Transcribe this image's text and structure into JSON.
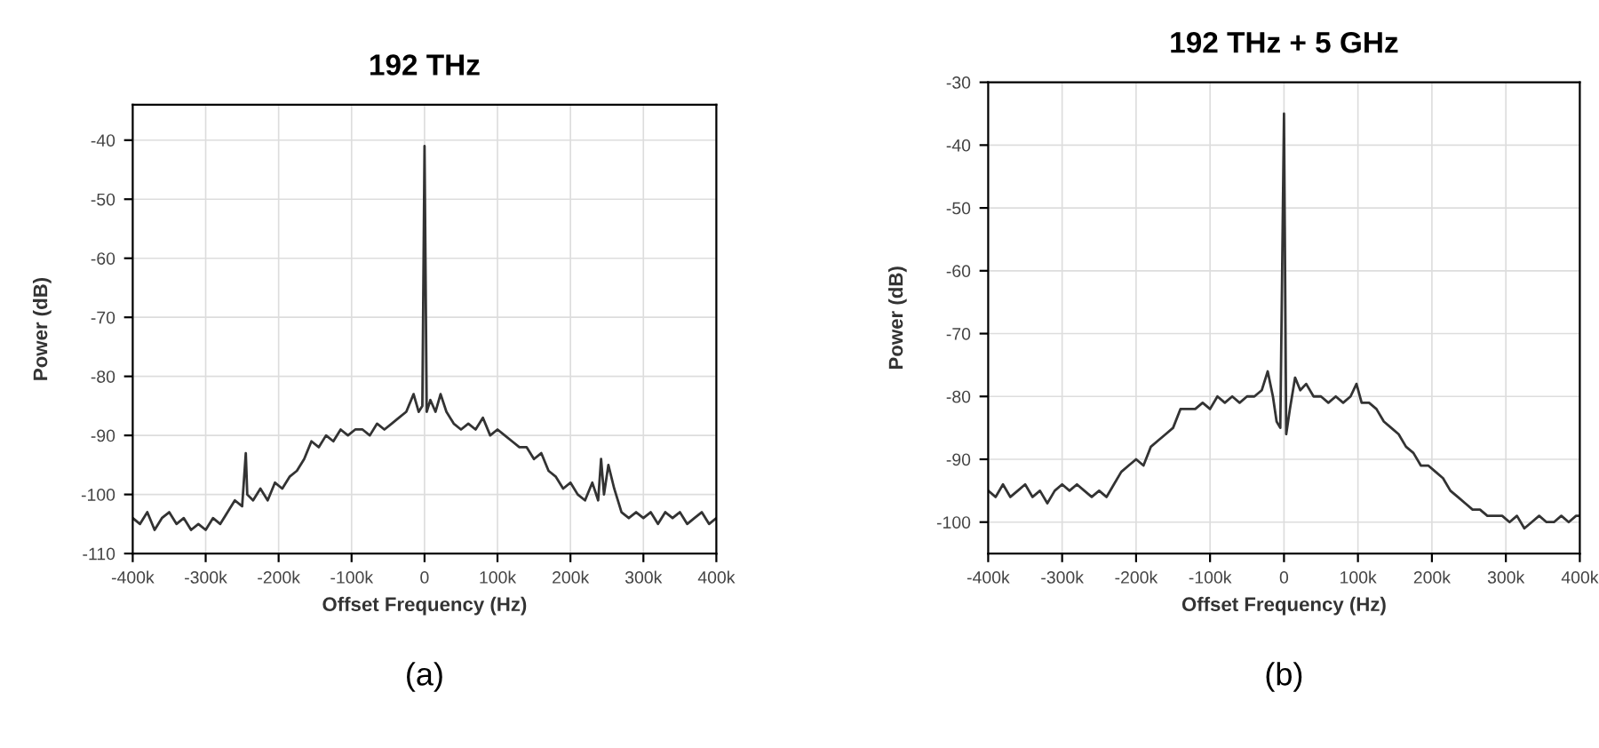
{
  "chart_data": [
    {
      "type": "line",
      "title": "192 THz",
      "xlabel": "Offset Frequency (Hz)",
      "ylabel": "Power (dB)",
      "annotations": [
        "(a)"
      ],
      "x": [
        -400000,
        -390000,
        -380000,
        -370000,
        -360000,
        -350000,
        -340000,
        -330000,
        -320000,
        -310000,
        -300000,
        -290000,
        -280000,
        -270000,
        -260000,
        -250000,
        -245000,
        -243000,
        -235000,
        -225000,
        -215000,
        -205000,
        -195000,
        -185000,
        -175000,
        -165000,
        -155000,
        -145000,
        -135000,
        -125000,
        -115000,
        -105000,
        -95000,
        -85000,
        -75000,
        -65000,
        -55000,
        -45000,
        -35000,
        -25000,
        -15000,
        -8000,
        -3000,
        0,
        3000,
        8000,
        15000,
        22000,
        30000,
        40000,
        50000,
        60000,
        70000,
        80000,
        90000,
        100000,
        110000,
        120000,
        130000,
        140000,
        150000,
        160000,
        170000,
        180000,
        190000,
        200000,
        210000,
        220000,
        230000,
        238000,
        242000,
        246000,
        252000,
        260000,
        270000,
        280000,
        290000,
        300000,
        310000,
        320000,
        330000,
        340000,
        350000,
        360000,
        370000,
        380000,
        390000,
        400000
      ],
      "series": [
        {
          "color": "#333333",
          "values": [
            -104,
            -105,
            -103,
            -106,
            -104,
            -103,
            -105,
            -104,
            -106,
            -105,
            -106,
            -104,
            -105,
            -103,
            -101,
            -102,
            -93,
            -100,
            -101,
            -99,
            -101,
            -98,
            -99,
            -97,
            -96,
            -94,
            -91,
            -92,
            -90,
            -91,
            -89,
            -90,
            -89,
            -89,
            -90,
            -88,
            -89,
            -88,
            -87,
            -86,
            -83,
            -86,
            -85,
            -41,
            -86,
            -84,
            -86,
            -83,
            -86,
            -88,
            -89,
            -88,
            -89,
            -87,
            -90,
            -89,
            -90,
            -91,
            -92,
            -92,
            -94,
            -93,
            -96,
            -97,
            -99,
            -98,
            -100,
            -101,
            -98,
            -101,
            -94,
            -100,
            -95,
            -99,
            -103,
            -104,
            -103,
            -104,
            -103,
            -105,
            -103,
            -104,
            -103,
            -105,
            -104,
            -103,
            -105,
            -104
          ]
        }
      ],
      "xlim": [
        -400000,
        400000
      ],
      "ylim": [
        -110,
        -34
      ],
      "xticks": [
        {
          "value": -400000,
          "label": "-400k"
        },
        {
          "value": -300000,
          "label": "-300k"
        },
        {
          "value": -200000,
          "label": "-200k"
        },
        {
          "value": -100000,
          "label": "-100k"
        },
        0,
        {
          "value": 100000,
          "label": "100k"
        },
        {
          "value": 200000,
          "label": "200k"
        },
        {
          "value": 300000,
          "label": "300k"
        },
        {
          "value": 400000,
          "label": "400k"
        }
      ],
      "yticks": [
        -110,
        -100,
        -90,
        -80,
        -70,
        -60,
        -50,
        -40
      ],
      "grid": true,
      "legend": false,
      "marker": "none",
      "line_style": "solid"
    },
    {
      "type": "line",
      "title": "192 THz + 5 GHz",
      "xlabel": "Offset Frequency (Hz)",
      "ylabel": "Power (dB)",
      "annotations": [
        "(b)"
      ],
      "x": [
        -400000,
        -390000,
        -380000,
        -370000,
        -360000,
        -350000,
        -340000,
        -330000,
        -320000,
        -310000,
        -300000,
        -290000,
        -280000,
        -270000,
        -260000,
        -250000,
        -240000,
        -230000,
        -220000,
        -210000,
        -200000,
        -190000,
        -180000,
        -170000,
        -160000,
        -150000,
        -140000,
        -130000,
        -120000,
        -110000,
        -100000,
        -90000,
        -80000,
        -70000,
        -60000,
        -50000,
        -40000,
        -30000,
        -22000,
        -15000,
        -10000,
        -5000,
        0,
        3000,
        8000,
        15000,
        22000,
        30000,
        40000,
        50000,
        60000,
        70000,
        80000,
        90000,
        98000,
        105000,
        115000,
        125000,
        135000,
        145000,
        155000,
        165000,
        175000,
        185000,
        195000,
        205000,
        215000,
        225000,
        235000,
        245000,
        255000,
        265000,
        275000,
        285000,
        295000,
        305000,
        315000,
        325000,
        335000,
        345000,
        355000,
        365000,
        375000,
        385000,
        395000,
        400000
      ],
      "series": [
        {
          "color": "#333333",
          "values": [
            -95,
            -96,
            -94,
            -96,
            -95,
            -94,
            -96,
            -95,
            -97,
            -95,
            -94,
            -95,
            -94,
            -95,
            -96,
            -95,
            -96,
            -94,
            -92,
            -91,
            -90,
            -91,
            -88,
            -87,
            -86,
            -85,
            -82,
            -82,
            -82,
            -81,
            -82,
            -80,
            -81,
            -80,
            -81,
            -80,
            -80,
            -79,
            -76,
            -80,
            -84,
            -85,
            -35,
            -86,
            -82,
            -77,
            -79,
            -78,
            -80,
            -80,
            -81,
            -80,
            -81,
            -80,
            -78,
            -81,
            -81,
            -82,
            -84,
            -85,
            -86,
            -88,
            -89,
            -91,
            -91,
            -92,
            -93,
            -95,
            -96,
            -97,
            -98,
            -98,
            -99,
            -99,
            -99,
            -100,
            -99,
            -101,
            -100,
            -99,
            -100,
            -100,
            -99,
            -100,
            -99,
            -99
          ]
        }
      ],
      "xlim": [
        -400000,
        400000
      ],
      "ylim": [
        -105,
        -30
      ],
      "xticks": [
        {
          "value": -400000,
          "label": "-400k"
        },
        {
          "value": -300000,
          "label": "-300k"
        },
        {
          "value": -200000,
          "label": "-200k"
        },
        {
          "value": -100000,
          "label": "-100k"
        },
        0,
        {
          "value": 100000,
          "label": "100k"
        },
        {
          "value": 200000,
          "label": "200k"
        },
        {
          "value": 300000,
          "label": "300k"
        },
        {
          "value": 400000,
          "label": "400k"
        }
      ],
      "yticks": [
        -100,
        -90,
        -80,
        -70,
        -60,
        -50,
        -40,
        -30
      ],
      "grid": true,
      "legend": false,
      "marker": "none",
      "line_style": "solid"
    }
  ]
}
